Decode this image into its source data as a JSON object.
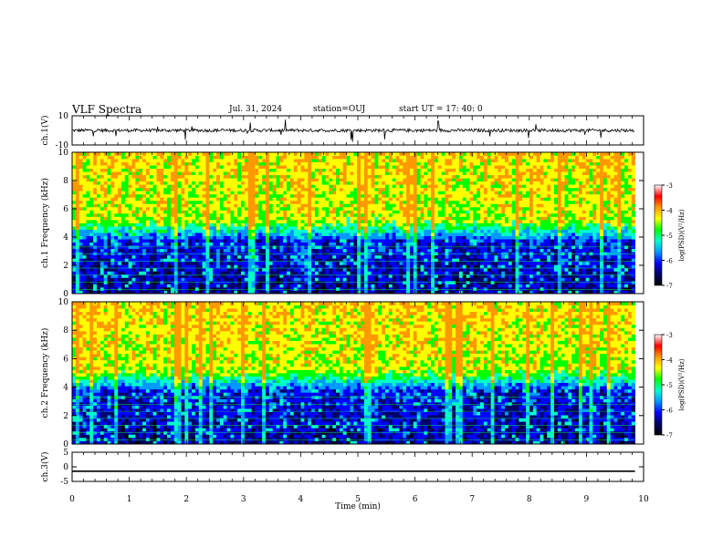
{
  "header": {
    "title": "VLF Spectra",
    "date": "Jul. 31, 2024",
    "station": "station=OUJ",
    "start_ut": "start  UT =  17: 40: 0"
  },
  "colors": {
    "colormap": [
      "#000000",
      "#000066",
      "#0000ff",
      "#0099ff",
      "#00ffcc",
      "#00ff00",
      "#ffff00",
      "#ff9900",
      "#ff0000",
      "#ffffff"
    ]
  },
  "chart_data": [
    {
      "type": "line",
      "panel": "ch1-waveform",
      "ylabel": "ch.1(V)",
      "ylim": [
        -10,
        10
      ],
      "yticks": [
        "10",
        "-10"
      ],
      "xlim": [
        0,
        10
      ],
      "baseline": 0
    },
    {
      "type": "heatmap",
      "panel": "ch1-spectrogram",
      "ylabel": "ch.1  Frequency (kHz)",
      "ylim": [
        0,
        10
      ],
      "yticks": [
        "0",
        "2",
        "4",
        "6",
        "8",
        "10"
      ],
      "xlim": [
        0,
        9.85
      ],
      "colorbar": {
        "label": "log(PSD)(V²/Hz)",
        "range": [
          -7,
          -3
        ],
        "ticks": [
          "-3",
          "-4",
          "-5",
          "-6",
          "-7"
        ]
      }
    },
    {
      "type": "heatmap",
      "panel": "ch2-spectrogram",
      "ylabel": "ch.2  Frequency (kHz)",
      "ylim": [
        0,
        10
      ],
      "yticks": [
        "0",
        "2",
        "4",
        "6",
        "8",
        "10"
      ],
      "xlim": [
        0,
        9.85
      ],
      "colorbar": {
        "label": "log(PSD)(V²/Hz)",
        "range": [
          -7,
          -3
        ],
        "ticks": [
          "-3",
          "-4",
          "-5",
          "-6",
          "-7"
        ]
      }
    },
    {
      "type": "line",
      "panel": "ch3-waveform",
      "ylabel": "ch.3(V)",
      "ylim": [
        -5,
        5
      ],
      "yticks": [
        "5",
        "0",
        "-5"
      ],
      "x": [
        0,
        9.85
      ],
      "y": [
        -1.5,
        -1.5
      ]
    }
  ],
  "xaxis": {
    "label": "Time (min)",
    "ticks": [
      "0",
      "1",
      "2",
      "3",
      "4",
      "5",
      "6",
      "7",
      "8",
      "9",
      "10"
    ],
    "range": [
      0,
      10
    ]
  }
}
